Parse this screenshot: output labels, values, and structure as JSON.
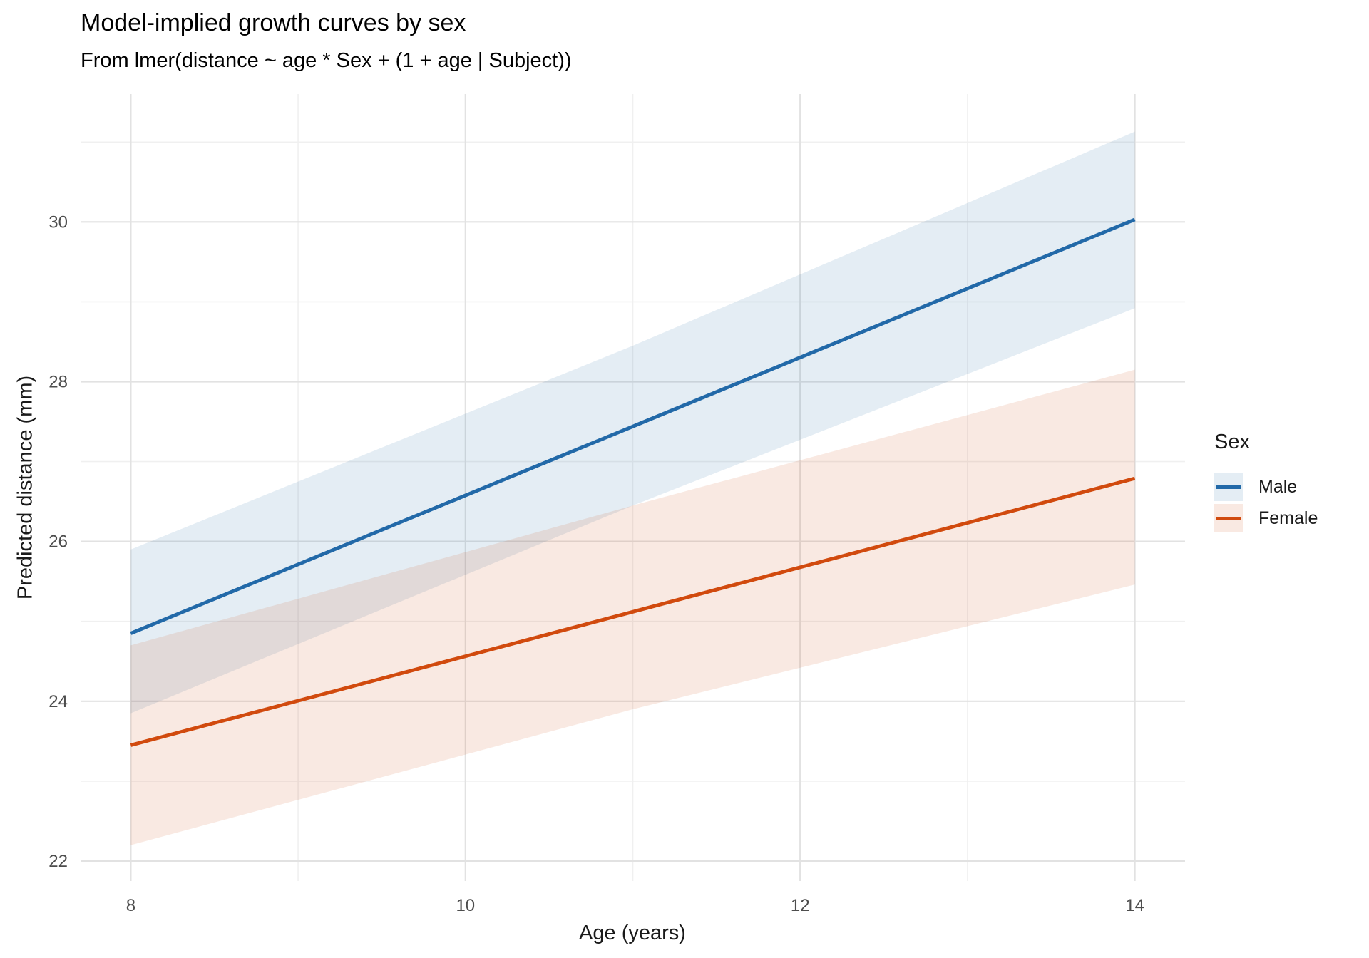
{
  "title": "Model-implied growth curves by sex",
  "subtitle": "From lmer(distance ~ age * Sex + (1 + age | Subject))",
  "chart_data": {
    "type": "line",
    "title": "Model-implied growth curves by sex",
    "subtitle": "From lmer(distance ~ age * Sex + (1 + age | Subject))",
    "xlabel": "Age (years)",
    "ylabel": "Predicted distance (mm)",
    "xlim": [
      7.7,
      14.3
    ],
    "ylim": [
      21.75,
      31.6
    ],
    "x_major_ticks": [
      8,
      10,
      12,
      14
    ],
    "x_minor_ticks": [
      9,
      11,
      13
    ],
    "y_major_ticks": [
      22,
      24,
      26,
      28,
      30
    ],
    "y_minor_ticks": [
      23,
      25,
      27,
      29,
      31
    ],
    "grid": "on",
    "legend": {
      "title": "Sex",
      "position": "right"
    },
    "colors": {
      "male_line": "#2269a8",
      "female_line": "#d14a0e",
      "male_ribbon": "rgba(34,105,168,0.12)",
      "female_ribbon": "rgba(209,74,14,0.12)",
      "grid_major": "#e2e2e2",
      "grid_minor": "#f0f0f0",
      "tick_label": "#4d4d4d"
    },
    "series": [
      {
        "name": "Male",
        "color": "#2269a8",
        "fill": "rgba(34,105,168,0.12)",
        "x": [
          8,
          11,
          14
        ],
        "y": [
          24.85,
          27.44,
          30.03
        ],
        "ci_upper": [
          25.9,
          28.45,
          31.13
        ],
        "ci_lower": [
          23.85,
          26.45,
          28.92
        ]
      },
      {
        "name": "Female",
        "color": "#d14a0e",
        "fill": "rgba(209,74,14,0.12)",
        "x": [
          8,
          11,
          14
        ],
        "y": [
          23.45,
          25.12,
          26.79
        ],
        "ci_upper": [
          24.7,
          26.45,
          28.15
        ],
        "ci_lower": [
          22.2,
          23.9,
          25.46
        ]
      }
    ]
  }
}
